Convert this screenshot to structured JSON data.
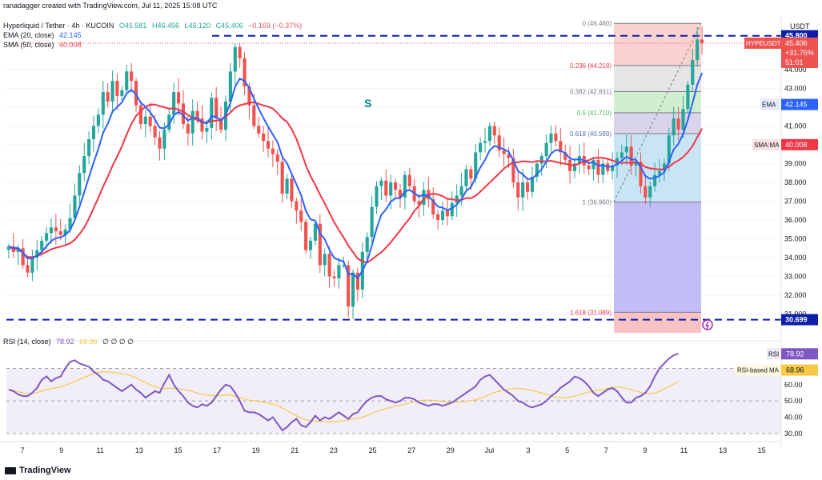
{
  "header": {
    "created_by": "ranadagger created with TradingView.com, Jul 11, 2025 15:08 UTC",
    "symbol": "Hyperliquid / Tether · 4h · KUCOIN",
    "ohlc": {
      "open": "O45.581",
      "high": "H46.456",
      "low": "L45.120",
      "close": "C45.406",
      "change": "−0.169 (−0.37%)"
    },
    "ema_label": "EMA (20, close)",
    "ema_value": "42.145",
    "sma_label": "SMA (50, close)",
    "sma_value": "40.008",
    "rsi_label": "RSI (14, close)",
    "rsi_value": "78.92",
    "rsi_ma_value": "68.96",
    "rsi_extras": "∅ ∅ ∅ ∅",
    "currency": "USDT"
  },
  "brand": "TradingView",
  "colors": {
    "up": "#26a69a",
    "down": "#ef5350",
    "ema": "#2962ff",
    "sma": "#f23645",
    "rsi": "#7e57c2",
    "rsi_ma": "#f7c948",
    "dash": "#0d1fa8"
  },
  "chart_data": {
    "type": "candlestick",
    "price_axis": {
      "min": 30.0,
      "max": 46.0,
      "ticks": [
        "44.000",
        "43.000",
        "42.000",
        "41.000",
        "40.000",
        "39.000",
        "38.000",
        "37.000",
        "36.000",
        "35.000",
        "34.000",
        "33.000",
        "32.000",
        "31.000"
      ]
    },
    "x_axis": {
      "ticks": [
        "7",
        "9",
        "11",
        "13",
        "15",
        "17",
        "19",
        "21",
        "23",
        "25",
        "27",
        "29",
        "Jul",
        "3",
        "5",
        "7",
        "9",
        "11",
        "13",
        "15"
      ]
    },
    "horizontal_lines": [
      {
        "value": 45.8,
        "label": "45.800"
      },
      {
        "value": 30.699,
        "label": "30.699"
      }
    ],
    "price_badges": [
      {
        "name": "symbol",
        "lines": [
          "HYPEUSDT",
          "45.406",
          "+31.75%",
          "51:01"
        ],
        "value": 45.406
      },
      {
        "name": "ema",
        "lines": [
          "EMA",
          "42.145"
        ],
        "value": 42.145
      },
      {
        "name": "sma",
        "lines": [
          "SMA:MA",
          "40.008"
        ],
        "value": 40.008
      }
    ],
    "annotation": "S",
    "fibonacci": [
      {
        "level": "0",
        "price": 46.46,
        "label": "0 (46.460)"
      },
      {
        "level": "0.236",
        "price": 44.218,
        "label": "0.236 (44.218)"
      },
      {
        "level": "0.382",
        "price": 42.831,
        "label": "0.382 (42.831)"
      },
      {
        "level": "0.5",
        "price": 41.71,
        "label": "0.5 (41.710)"
      },
      {
        "level": "0.618",
        "price": 40.589,
        "label": "0.618 (40.589)"
      },
      {
        "level": "1",
        "price": 36.96,
        "label": "1 (36.960)"
      },
      {
        "level": "1.618",
        "price": 31.089,
        "label": "1.618 (31.089)"
      }
    ],
    "close_series": [
      34.6,
      34.3,
      34.5,
      33.6,
      33.2,
      34.0,
      34.4,
      34.9,
      35.3,
      35.6,
      35.4,
      35.2,
      35.5,
      36.1,
      37.3,
      38.5,
      39.4,
      40.3,
      41.0,
      41.6,
      42.8,
      42.3,
      43.4,
      42.6,
      42.9,
      43.9,
      43.4,
      42.1,
      41.1,
      41.5,
      41.0,
      40.4,
      39.8,
      40.8,
      41.6,
      42.8,
      42.2,
      41.1,
      40.6,
      41.8,
      41.4,
      40.7,
      40.9,
      42.5,
      41.4,
      40.8,
      42.3,
      43.9,
      45.2,
      44.6,
      43.1,
      42.1,
      41.0,
      40.6,
      40.2,
      39.8,
      39.5,
      39.1,
      37.4,
      38.2,
      37.0,
      36.5,
      35.9,
      34.4,
      34.9,
      35.8,
      33.6,
      34.2,
      33.0,
      32.9,
      33.6,
      33.6,
      31.4,
      33.2,
      32.3,
      34.3,
      35.1,
      36.7,
      37.8,
      38.1,
      37.3,
      38.0,
      37.6,
      37.2,
      38.4,
      37.8,
      37.0,
      36.8,
      37.6,
      37.1,
      36.3,
      36.0,
      36.5,
      36.2,
      36.9,
      37.3,
      37.8,
      38.7,
      38.2,
      39.6,
      40.1,
      40.2,
      41.0,
      40.5,
      39.7,
      39.5,
      39.3,
      38.0,
      37.2,
      38.0,
      37.5,
      38.3,
      39.0,
      39.4,
      40.1,
      40.6,
      40.2,
      39.6,
      39.2,
      38.6,
      39.0,
      39.4,
      38.9,
      38.7,
      39.2,
      38.4,
      39.0,
      38.6,
      38.9,
      39.3,
      39.6,
      39.9,
      38.9,
      39.1,
      37.8,
      37.2,
      37.8,
      38.4,
      38.6,
      39.0,
      40.5,
      41.4,
      40.8,
      41.9,
      43.2,
      44.5,
      45.6,
      45.4
    ],
    "rsi_series": [
      57,
      56,
      54,
      53,
      53,
      55,
      58,
      63,
      65,
      62,
      64,
      65,
      70,
      74,
      75,
      73,
      72,
      71,
      68,
      66,
      63,
      62,
      60,
      58,
      56,
      58,
      60,
      57,
      55,
      52,
      54,
      56,
      55,
      61,
      66,
      60,
      56,
      53,
      49,
      47,
      46,
      48,
      47,
      49,
      53,
      57,
      60,
      59,
      55,
      50,
      44,
      43,
      43,
      42,
      40,
      38,
      40,
      36,
      32,
      34,
      37,
      39,
      35,
      34,
      37,
      41,
      38,
      40,
      39,
      41,
      43,
      41,
      39,
      42,
      43,
      47,
      50,
      52,
      53,
      53,
      51,
      50,
      49,
      50,
      52,
      52,
      51,
      49,
      48,
      47,
      48,
      48,
      47,
      48,
      49,
      51,
      53,
      55,
      57,
      59,
      63,
      65,
      66,
      63,
      60,
      57,
      55,
      53,
      50,
      49,
      47,
      46,
      47,
      48,
      50,
      53,
      55,
      58,
      60,
      62,
      65,
      64,
      62,
      59,
      55,
      53,
      55,
      57,
      58,
      56,
      52,
      49,
      49,
      52,
      53,
      55,
      59,
      65,
      70,
      73,
      76,
      78,
      79
    ],
    "rsi_axis": {
      "ticks": [
        "70.00",
        "60.00",
        "50.00",
        "40.00",
        "30.00"
      ],
      "min": 28,
      "max": 82
    },
    "rsi_bands": {
      "upper": 70,
      "middle": 50,
      "lower": 30
    }
  }
}
